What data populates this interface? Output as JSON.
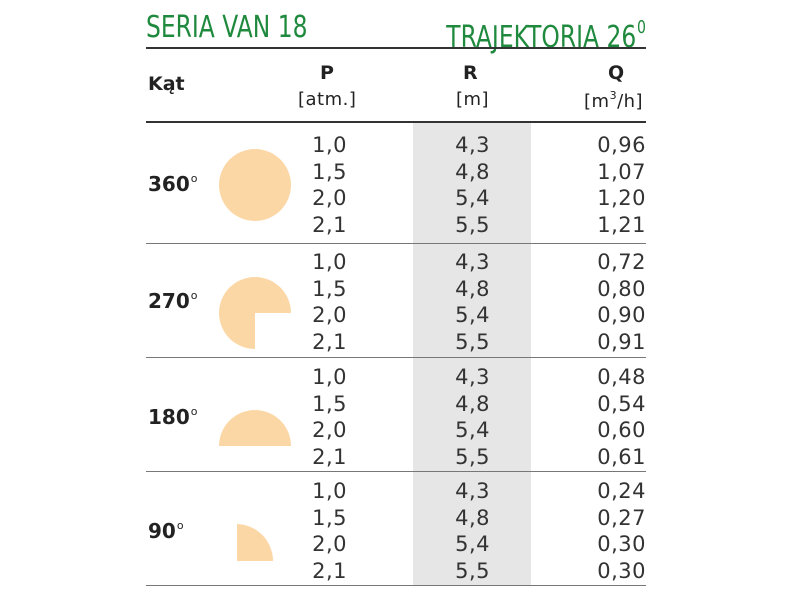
{
  "title": {
    "series": "SERIA VAN 18",
    "trajectory": "TRAJEKTORIA 26",
    "trajectory_sup": "0"
  },
  "colors": {
    "title_green": "#1f8a3e",
    "spray_fill": "#fcd7a6",
    "column_shade": "#e6e6e6"
  },
  "headers": {
    "angle": "Kąt",
    "p": "P",
    "p_unit": "[atm.]",
    "r": "R",
    "r_unit": "[m]",
    "q": "Q",
    "q_unit_pre": "[m",
    "q_unit_sup": "3",
    "q_unit_post": "/h]"
  },
  "rows": [
    {
      "angle": "360",
      "degree": "o",
      "pattern": "full-circle",
      "p": "1,0\n1,5\n2,0\n2,1",
      "r": "4,3\n4,8\n5,4\n5,5",
      "q": "0,96\n1,07\n1,20\n1,21"
    },
    {
      "angle": "270",
      "degree": "o",
      "pattern": "three-quarter-circle",
      "p": "1,0\n1,5\n2,0\n2,1",
      "r": "4,3\n4,8\n5,4\n5,5",
      "q": "0,72\n0,80\n0,90\n0,91"
    },
    {
      "angle": "180",
      "degree": "o",
      "pattern": "half-circle",
      "p": "1,0\n1,5\n2,0\n2,1",
      "r": "4,3\n4,8\n5,4\n5,5",
      "q": "0,48\n0,54\n0,60\n0,61"
    },
    {
      "angle": "90",
      "degree": "o",
      "pattern": "quarter-circle",
      "p": "1,0\n1,5\n2,0\n2,1",
      "r": "4,3\n4,8\n5,4\n5,5",
      "q": "0,24\n0,27\n0,30\n0,30"
    }
  ]
}
